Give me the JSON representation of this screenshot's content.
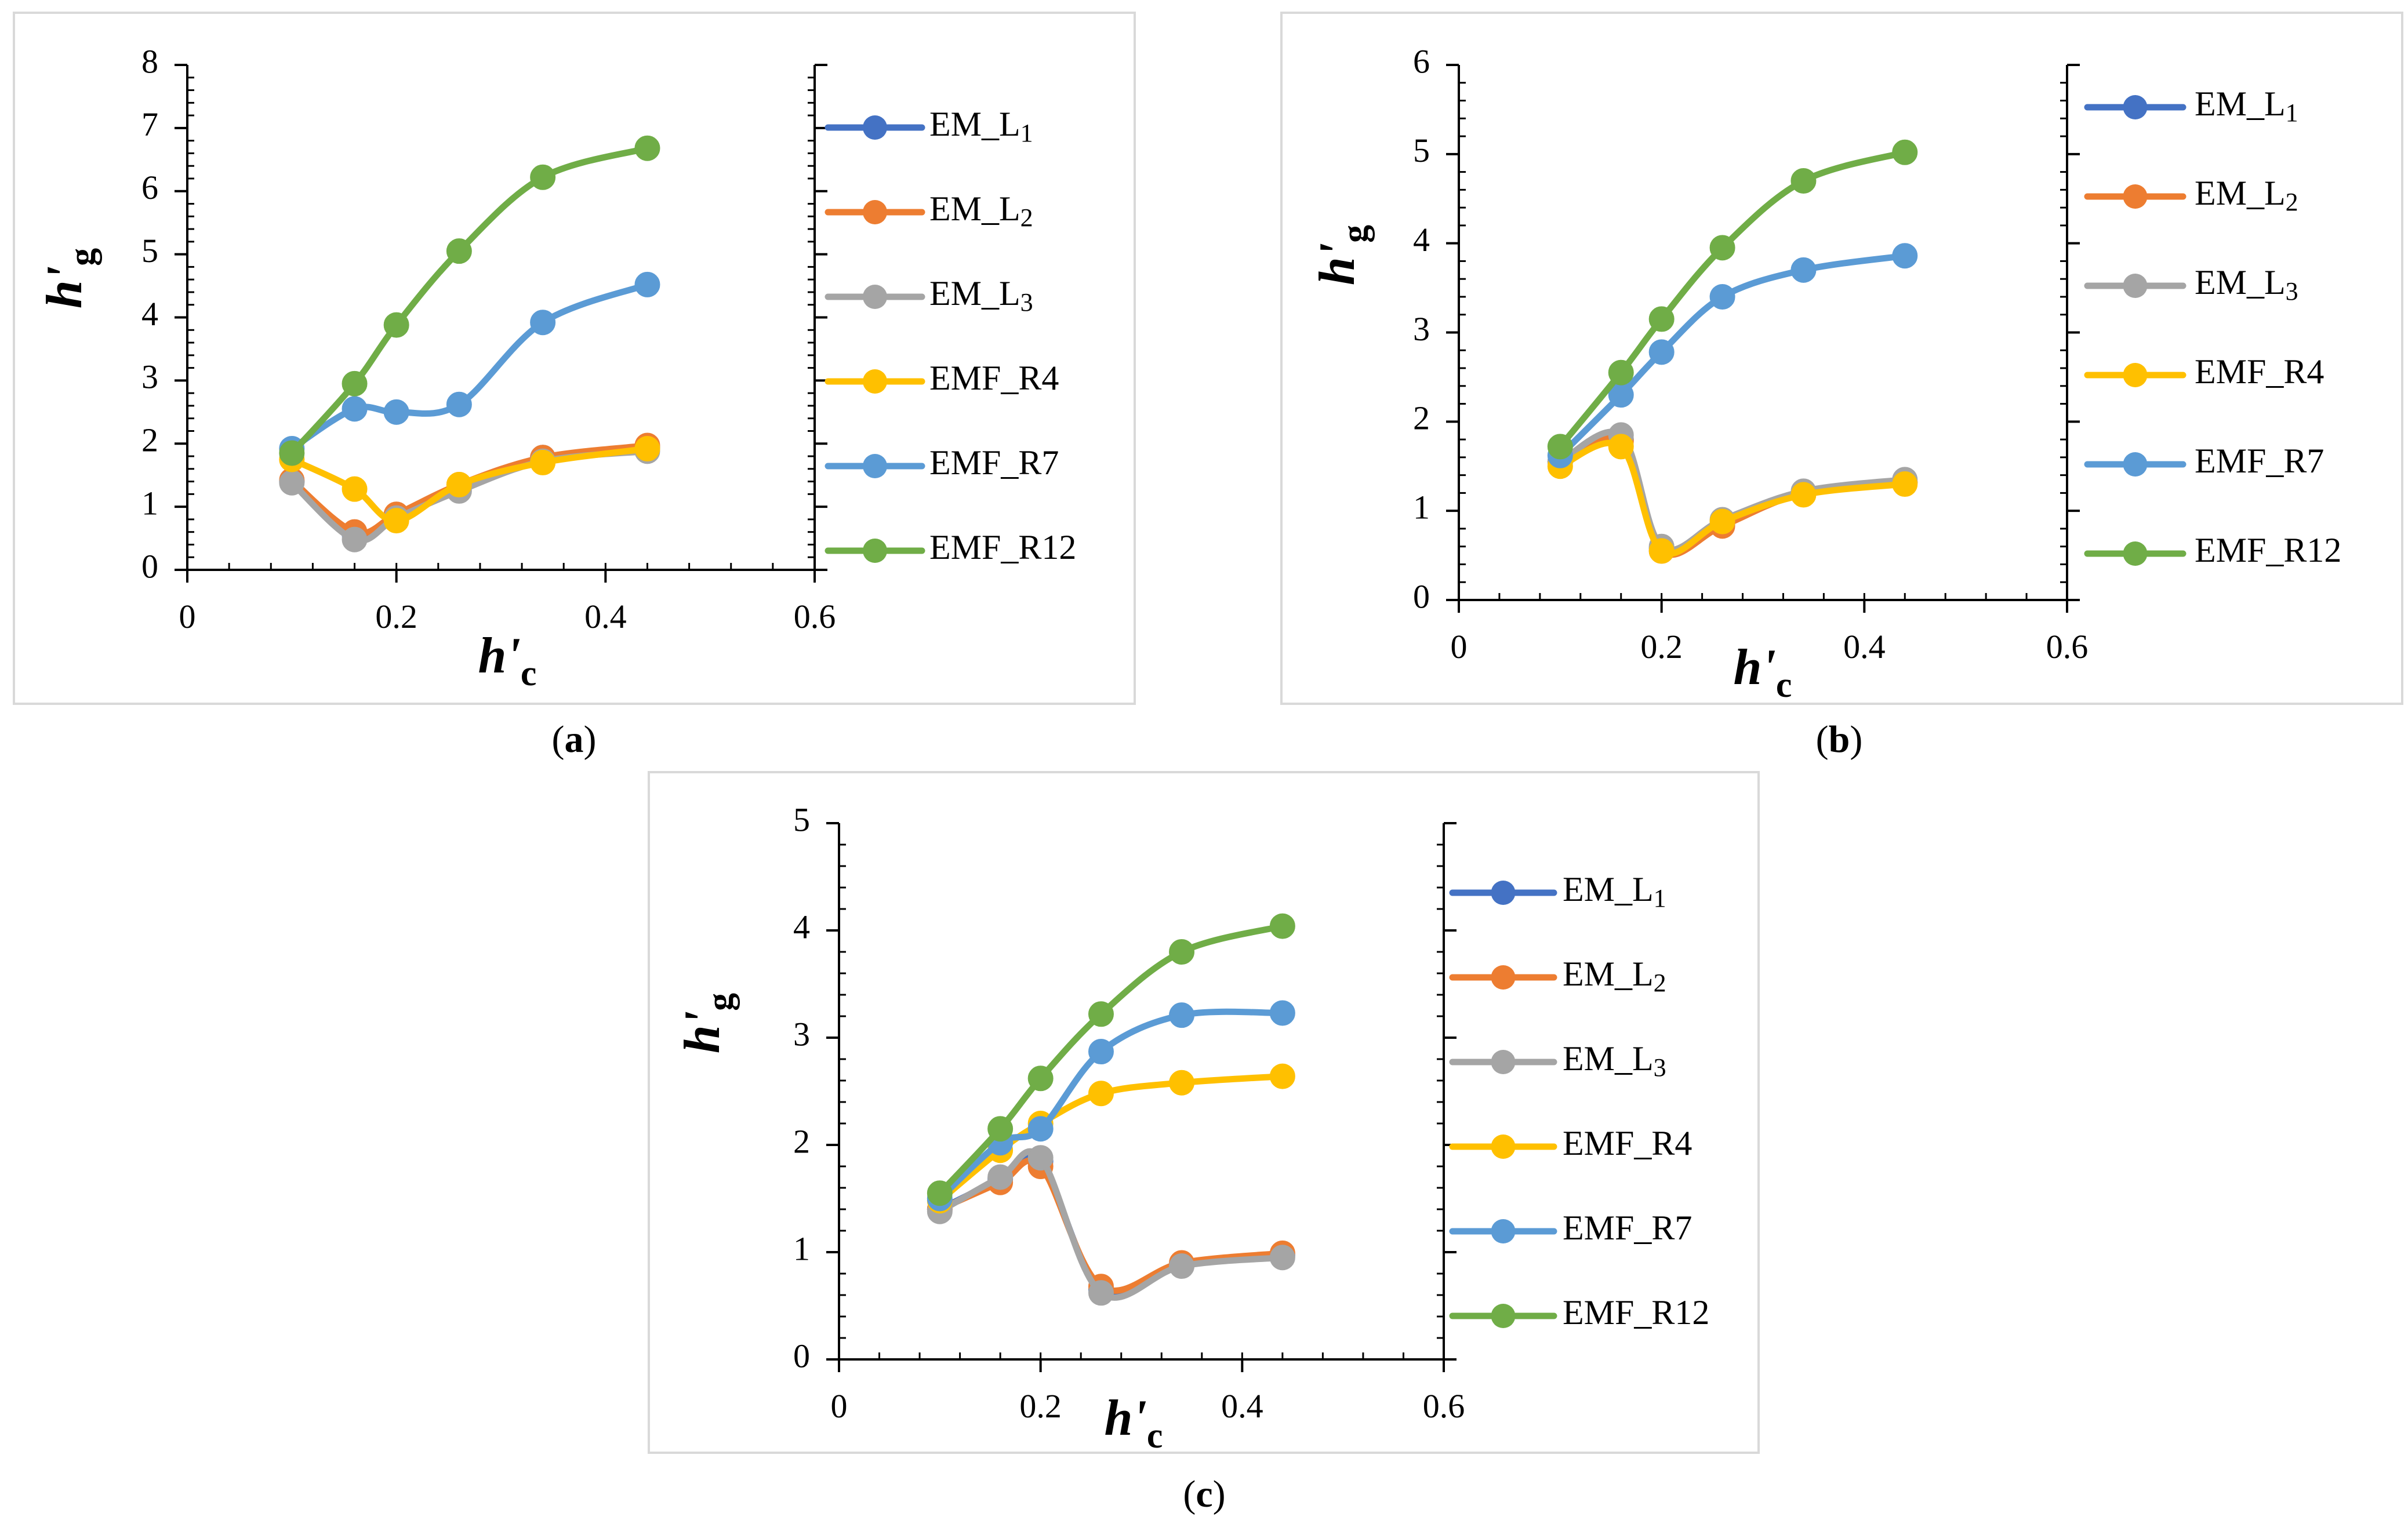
{
  "colors": {
    "EM_L1": "#4472c4",
    "EM_L2": "#ed7d31",
    "EM_L3": "#a5a5a5",
    "EMF_R4": "#ffc000",
    "EMF_R7": "#5b9bd5",
    "EMF_R12": "#70ad47",
    "frame": "#d9d9d9",
    "axis": "#000000"
  },
  "chart_data": [
    {
      "type": "line",
      "caption_letter": "a",
      "caption_open": "(",
      "caption_close": ")",
      "xlabel": "h'c",
      "ylabel": "h'g",
      "xlim": [
        0,
        0.6
      ],
      "ylim": [
        0,
        8
      ],
      "xticks": [
        "0",
        "0.2",
        "0.4",
        "0.6"
      ],
      "yticks": [
        "0",
        "1",
        "2",
        "3",
        "4",
        "5",
        "6",
        "7",
        "8"
      ],
      "x": [
        0.1,
        0.16,
        0.2,
        0.26,
        0.34,
        0.44
      ],
      "series": [
        {
          "key": "EM_L1",
          "name": "EM_L1",
          "values": [
            1.4,
            0.55,
            0.85,
            1.3,
            1.78,
            1.93
          ]
        },
        {
          "key": "EM_L2",
          "name": "EM_L2",
          "values": [
            1.42,
            0.6,
            0.88,
            1.35,
            1.78,
            1.97
          ]
        },
        {
          "key": "EM_L3",
          "name": "EM_L3",
          "values": [
            1.38,
            0.48,
            0.82,
            1.25,
            1.72,
            1.88
          ]
        },
        {
          "key": "EMF_R4",
          "name": "EMF_R4",
          "values": [
            1.75,
            1.28,
            0.78,
            1.35,
            1.7,
            1.92
          ]
        },
        {
          "key": "EMF_R7",
          "name": "EMF_R7",
          "values": [
            1.92,
            2.55,
            2.5,
            2.62,
            3.92,
            4.52
          ]
        },
        {
          "key": "EMF_R12",
          "name": "EMF_R12",
          "values": [
            1.85,
            2.95,
            3.88,
            5.05,
            6.22,
            6.68
          ]
        }
      ]
    },
    {
      "type": "line",
      "caption_letter": "b",
      "caption_open": "(",
      "caption_close": ")",
      "xlabel": "h'c",
      "ylabel": "h'g",
      "xlim": [
        0,
        0.6
      ],
      "ylim": [
        0,
        6
      ],
      "xticks": [
        "0",
        "0.2",
        "0.4",
        "0.6"
      ],
      "yticks": [
        "0",
        "1",
        "2",
        "3",
        "4",
        "5",
        "6"
      ],
      "x": [
        0.1,
        0.16,
        0.2,
        0.26,
        0.34,
        0.44
      ],
      "series": [
        {
          "key": "EM_L1",
          "name": "EM_L1",
          "values": [
            1.55,
            1.8,
            0.58,
            0.85,
            1.2,
            1.32
          ]
        },
        {
          "key": "EM_L2",
          "name": "EM_L2",
          "values": [
            1.55,
            1.78,
            0.55,
            0.83,
            1.2,
            1.32
          ]
        },
        {
          "key": "EM_L3",
          "name": "EM_L3",
          "values": [
            1.55,
            1.85,
            0.6,
            0.9,
            1.22,
            1.35
          ]
        },
        {
          "key": "EMF_R4",
          "name": "EMF_R4",
          "values": [
            1.5,
            1.72,
            0.55,
            0.88,
            1.18,
            1.3
          ]
        },
        {
          "key": "EMF_R7",
          "name": "EMF_R7",
          "values": [
            1.62,
            2.3,
            2.78,
            3.4,
            3.7,
            3.86
          ]
        },
        {
          "key": "EMF_R12",
          "name": "EMF_R12",
          "values": [
            1.72,
            2.55,
            3.15,
            3.95,
            4.7,
            5.02
          ]
        }
      ]
    },
    {
      "type": "line",
      "caption_letter": "c",
      "caption_open": "(",
      "caption_close": ")",
      "xlabel": "h'c",
      "ylabel": "h'g",
      "xlim": [
        0,
        0.6
      ],
      "ylim": [
        0,
        5
      ],
      "xticks": [
        "0",
        "0.2",
        "0.4",
        "0.6"
      ],
      "yticks": [
        "0",
        "1",
        "2",
        "3",
        "4",
        "5"
      ],
      "x": [
        0.1,
        0.16,
        0.2,
        0.26,
        0.34,
        0.44
      ],
      "series": [
        {
          "key": "EM_L1",
          "name": "EM_L1",
          "values": [
            1.4,
            1.68,
            1.85,
            0.65,
            0.88,
            0.97
          ]
        },
        {
          "key": "EM_L2",
          "name": "EM_L2",
          "values": [
            1.4,
            1.65,
            1.8,
            0.68,
            0.9,
            0.99
          ]
        },
        {
          "key": "EM_L3",
          "name": "EM_L3",
          "values": [
            1.38,
            1.7,
            1.88,
            0.62,
            0.87,
            0.95
          ]
        },
        {
          "key": "EMF_R4",
          "name": "EMF_R4",
          "values": [
            1.48,
            1.95,
            2.2,
            2.48,
            2.58,
            2.64
          ]
        },
        {
          "key": "EMF_R7",
          "name": "EMF_R7",
          "values": [
            1.5,
            2.02,
            2.15,
            2.87,
            3.21,
            3.23
          ]
        },
        {
          "key": "EMF_R12",
          "name": "EMF_R12",
          "values": [
            1.55,
            2.15,
            2.62,
            3.22,
            3.8,
            4.04
          ]
        }
      ]
    }
  ]
}
